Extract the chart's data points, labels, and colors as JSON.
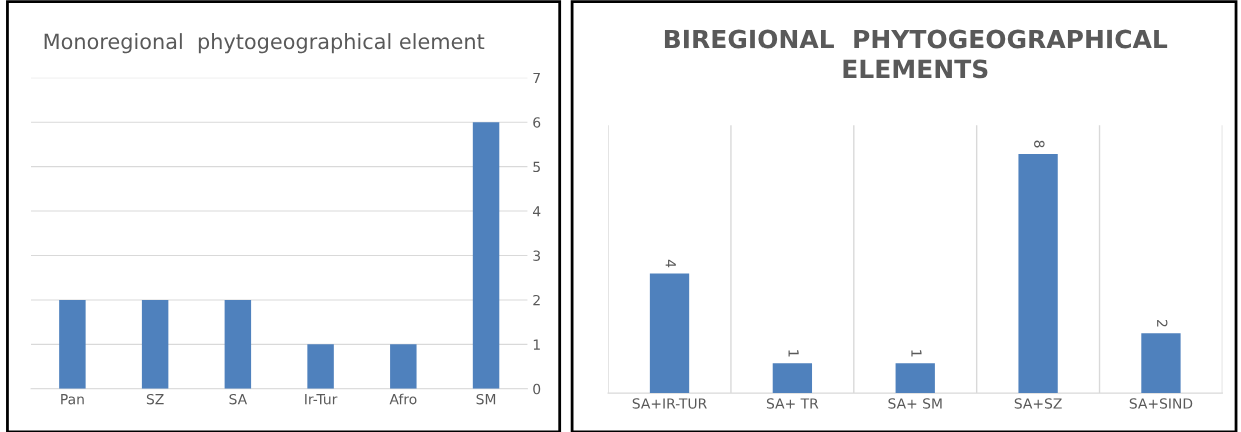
{
  "chart_data": [
    {
      "type": "bar",
      "title": "Monoregional  phytogeographical element",
      "categories": [
        "Pan",
        "SZ",
        "SA",
        "Ir-Tur",
        "Afro",
        "SM"
      ],
      "values": [
        2,
        2,
        2,
        1,
        1,
        6
      ],
      "color": "#4f81bd",
      "ylim": [
        0,
        7
      ],
      "yticks": [
        0,
        1,
        2,
        3,
        4,
        5,
        6,
        7
      ],
      "grid": "y"
    },
    {
      "type": "bar",
      "title": "BIREGIONAL  PHYTOGEOGRAPHICAL\nELEMENTS",
      "categories": [
        "SA+IR-TUR",
        "SA+ TR",
        "SA+ SM",
        "SA+SZ",
        "SA+SIND"
      ],
      "values": [
        4,
        1,
        1,
        8,
        2
      ],
      "color": "#4f81bd",
      "data_labels": true,
      "tick_labels": "x",
      "grid": "x"
    }
  ]
}
